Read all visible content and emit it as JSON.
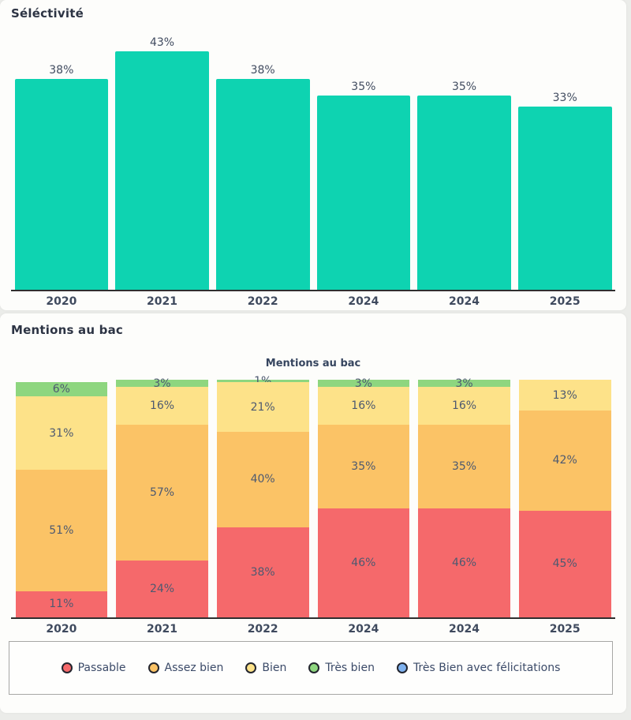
{
  "page": {
    "background": "#ebece9",
    "card_background": "#fdfdfb"
  },
  "selectivity": {
    "heading": "Séléctivité",
    "chart_data": {
      "type": "bar",
      "categories": [
        "2020",
        "2021",
        "2022",
        "2024",
        "2024",
        "2025"
      ],
      "values": [
        38,
        43,
        38,
        35,
        35,
        33
      ],
      "value_labels": [
        "38%",
        "43%",
        "38%",
        "35%",
        "35%",
        "33%"
      ],
      "unit": "%",
      "bar_color": "#0ed3b1",
      "ylim": [
        0,
        43
      ],
      "grid": false,
      "legend": false
    }
  },
  "mentions": {
    "heading": "Mentions au bac",
    "title": "Mentions au bac",
    "chart_data": {
      "type": "bar",
      "stacked": true,
      "unit": "%",
      "categories": [
        "2020",
        "2021",
        "2022",
        "2024",
        "2024",
        "2025"
      ],
      "series": [
        {
          "name": "Passable",
          "color": "#f5696b",
          "values": [
            11,
            24,
            38,
            46,
            46,
            45
          ]
        },
        {
          "name": "Assez bien",
          "color": "#fbc366",
          "values": [
            51,
            57,
            40,
            35,
            35,
            42
          ]
        },
        {
          "name": "Bien",
          "color": "#fde289",
          "values": [
            31,
            16,
            21,
            16,
            16,
            13
          ]
        },
        {
          "name": "Très bien",
          "color": "#8ed67f",
          "values": [
            6,
            3,
            1,
            3,
            3,
            0
          ]
        },
        {
          "name": "Très Bien avec félicitations",
          "color": "#7fb2ef",
          "values": [
            0,
            0,
            0,
            0,
            0,
            0
          ]
        }
      ],
      "ylim": [
        0,
        100
      ],
      "grid": false,
      "legend_position": "bottom"
    }
  }
}
